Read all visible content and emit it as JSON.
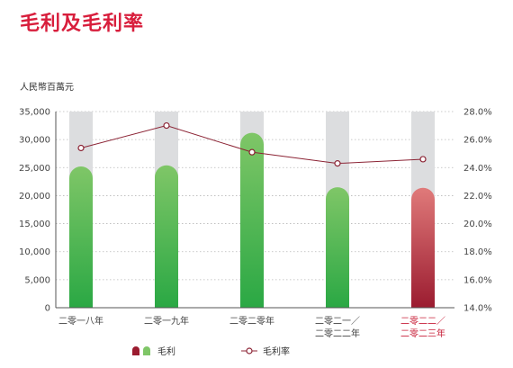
{
  "chart_data": {
    "type": "bar",
    "title": "毛利及毛利率",
    "ylabel": "人民幣百萬元",
    "categories": [
      [
        "二零一八年"
      ],
      [
        "二零一九年"
      ],
      [
        "二零二零年"
      ],
      [
        "二零二一／",
        "二零二二年"
      ],
      [
        "二零二二／",
        "二零二三年"
      ]
    ],
    "highlight_index": 4,
    "series": [
      {
        "name": "毛利",
        "type": "bar",
        "axis": "left",
        "values": [
          25200,
          25400,
          31200,
          21500,
          21400
        ]
      },
      {
        "name": "毛利率",
        "type": "line",
        "axis": "right",
        "values": [
          25.4,
          27.0,
          25.1,
          24.3,
          24.6
        ]
      }
    ],
    "background_bar_value": 35000,
    "y_left": {
      "min": 0,
      "max": 35000,
      "ticks": [
        "0",
        "5,000",
        "10,000",
        "15,000",
        "20,000",
        "25,000",
        "30,000",
        "35,000"
      ]
    },
    "y_right": {
      "min": 14.0,
      "max": 28.0,
      "ticks": [
        "14.0%",
        "16.0%",
        "18.0%",
        "20.0%",
        "22.0%",
        "24.0%",
        "26.0%",
        "28.0%"
      ]
    },
    "grid": true,
    "legend_position": "bottom",
    "colors": {
      "title": "#d81e3c",
      "bar_green_top": "#7fc667",
      "bar_green_bottom": "#2aa844",
      "bar_red_top": "#e07a7a",
      "bar_red_bottom": "#9b1c30",
      "background_bar": "#dcdddf",
      "line": "#8c2435",
      "highlight_text": "#c8203a",
      "axis": "#555555"
    }
  }
}
